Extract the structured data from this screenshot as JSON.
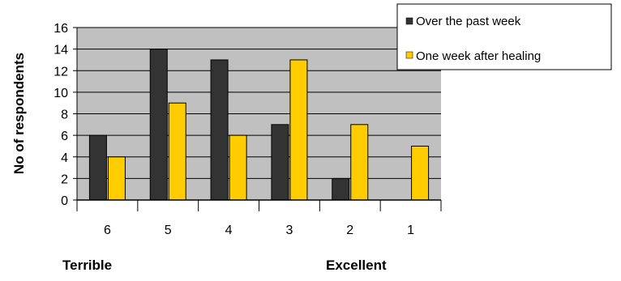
{
  "chart_data": {
    "type": "bar",
    "categories": [
      "6",
      "5",
      "4",
      "3",
      "2",
      "1"
    ],
    "series": [
      {
        "name": "Over the past week",
        "values": [
          6,
          14,
          13,
          7,
          2,
          0
        ],
        "color": "#333333"
      },
      {
        "name": "One week after healing",
        "values": [
          4,
          9,
          6,
          13,
          7,
          5
        ],
        "color": "#FFCC00"
      }
    ],
    "title": "",
    "xlabel": "",
    "ylabel": "No of respondents",
    "ylim": [
      0,
      16
    ],
    "yticks": [
      0,
      2,
      4,
      6,
      8,
      10,
      12,
      14,
      16
    ],
    "grid": true,
    "plot_background": "#C0C0C0",
    "legend_position": "top-right",
    "scale_labels": {
      "left": "Terrible",
      "right": "Excellent"
    }
  }
}
